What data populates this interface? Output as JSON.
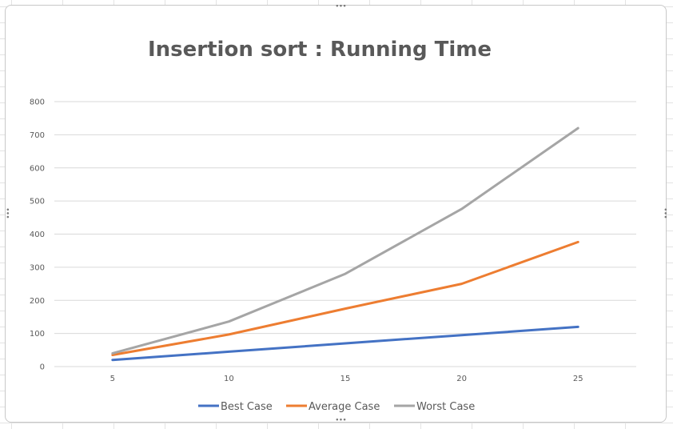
{
  "chart_data": {
    "type": "line",
    "title": "Insertion sort : Running Time",
    "xlabel": "",
    "ylabel": "",
    "x": [
      5,
      10,
      15,
      20,
      25
    ],
    "ylim": [
      0,
      800
    ],
    "yticks": [
      0,
      100,
      200,
      300,
      400,
      500,
      600,
      700,
      800
    ],
    "grid": true,
    "legend_position": "bottom",
    "series": [
      {
        "name": "Best Case",
        "color": "#4472C4",
        "values": [
          20,
          45,
          70,
          95,
          120
        ]
      },
      {
        "name": "Average Case",
        "color": "#ED7D31",
        "values": [
          35,
          97,
          175,
          250,
          376
        ]
      },
      {
        "name": "Worst Case",
        "color": "#A5A5A5",
        "values": [
          40,
          136,
          280,
          476,
          720
        ]
      }
    ]
  }
}
